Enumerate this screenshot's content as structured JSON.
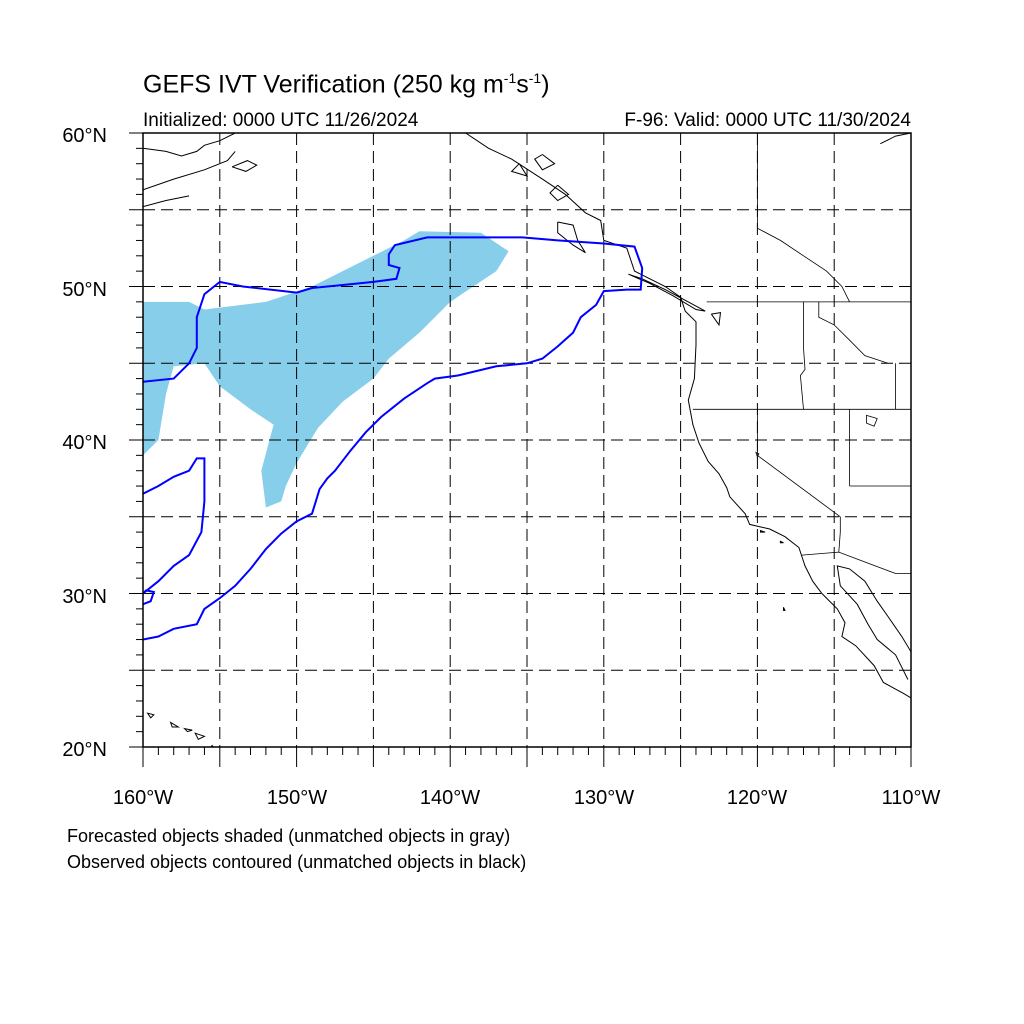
{
  "title": {
    "main": "GEFS IVT Verification (250 kg m",
    "exp1": "-1",
    "mid": "s",
    "exp2": "-1",
    "close": ")"
  },
  "initialized": "Initialized: 0000 UTC 11/26/2024",
  "valid": "F-96: Valid: 0000 UTC 11/30/2024",
  "lat_labels": [
    "60°N",
    "50°N",
    "40°N",
    "30°N",
    "20°N"
  ],
  "lon_labels": [
    "160°W",
    "150°W",
    "140°W",
    "130°W",
    "120°W",
    "110°W"
  ],
  "notes": {
    "line1": "Forecasted objects shaded (unmatched objects in gray)",
    "line2": "Observed objects contoured (unmatched objects in black)"
  },
  "map": {
    "extent": {
      "lon_min": -160,
      "lon_max": -110,
      "lat_min": 20,
      "lat_max": 60
    },
    "grid_interval_deg": 5,
    "colors": {
      "forecast_fill": "#87ceeb",
      "observed_contour": "#0000ff",
      "coast": "#000000",
      "grid": "#000000"
    },
    "forecast_object": [
      [
        -160,
        49
      ],
      [
        -157,
        49
      ],
      [
        -156,
        48.5
      ],
      [
        -152,
        49
      ],
      [
        -149,
        50
      ],
      [
        -147,
        51
      ],
      [
        -145,
        52
      ],
      [
        -143,
        53
      ],
      [
        -142,
        53.6
      ],
      [
        -138,
        53.5
      ],
      [
        -136.2,
        52.3
      ],
      [
        -137,
        51
      ],
      [
        -140,
        49
      ],
      [
        -142,
        47
      ],
      [
        -144,
        45.3
      ],
      [
        -145,
        44
      ],
      [
        -147,
        42.5
      ],
      [
        -148.6,
        40.8
      ],
      [
        -150,
        38.5
      ],
      [
        -150.7,
        37
      ],
      [
        -151,
        36
      ],
      [
        -152,
        35.6
      ],
      [
        -152.3,
        38
      ],
      [
        -151.5,
        41
      ],
      [
        -153,
        42
      ],
      [
        -155,
        43.5
      ],
      [
        -156,
        45
      ],
      [
        -158,
        44.8
      ],
      [
        -158.5,
        43
      ],
      [
        -159,
        40
      ],
      [
        -160,
        39
      ]
    ],
    "observed_objects": [
      [
        [
          -160,
          43.8
        ],
        [
          -158,
          44
        ],
        [
          -157,
          45
        ],
        [
          -156.5,
          46
        ],
        [
          -156.5,
          48
        ],
        [
          -156,
          49.5
        ],
        [
          -155,
          50.3
        ],
        [
          -153.5,
          50
        ],
        [
          -150,
          49.6
        ],
        [
          -149,
          49.9
        ],
        [
          -147,
          50.1
        ],
        [
          -145,
          50.3
        ],
        [
          -143.5,
          50.5
        ],
        [
          -143.3,
          51.2
        ],
        [
          -144,
          51.4
        ],
        [
          -144,
          52.1
        ],
        [
          -143.6,
          52.7
        ],
        [
          -141.5,
          53.2
        ],
        [
          -138,
          53.2
        ],
        [
          -135.3,
          53.2
        ],
        [
          -133,
          53
        ],
        [
          -130,
          52.8
        ],
        [
          -128,
          52.6
        ],
        [
          -127.5,
          51.2
        ],
        [
          -127.6,
          49.8
        ],
        [
          -128.5,
          49.8
        ],
        [
          -130,
          49.7
        ],
        [
          -130.5,
          48.8
        ],
        [
          -131.5,
          48
        ],
        [
          -132,
          47
        ],
        [
          -133,
          46.1
        ],
        [
          -134,
          45.3
        ],
        [
          -135,
          45
        ],
        [
          -137,
          44.8
        ],
        [
          -139.5,
          44.2
        ],
        [
          -141,
          44
        ],
        [
          -141.5,
          43.7
        ],
        [
          -143,
          42.7
        ],
        [
          -144.5,
          41.5
        ],
        [
          -145.5,
          40.5
        ],
        [
          -146.5,
          39.3
        ],
        [
          -147.5,
          38
        ],
        [
          -148,
          37.5
        ],
        [
          -148.5,
          36.8
        ],
        [
          -149,
          35.2
        ],
        [
          -150,
          34.7
        ],
        [
          -151,
          33.9
        ],
        [
          -152,
          32.9
        ],
        [
          -153,
          31.6
        ],
        [
          -154,
          30.5
        ],
        [
          -155,
          29.7
        ],
        [
          -156,
          29
        ],
        [
          -156.5,
          28
        ],
        [
          -158,
          27.7
        ],
        [
          -159,
          27.2
        ],
        [
          -160,
          27
        ]
      ],
      [
        [
          -160,
          36.5
        ],
        [
          -159,
          37
        ],
        [
          -158,
          37.6
        ],
        [
          -157,
          38
        ],
        [
          -156.5,
          38.8
        ],
        [
          -156,
          38.8
        ],
        [
          -156,
          36
        ],
        [
          -156.2,
          34
        ],
        [
          -157,
          32.5
        ],
        [
          -158,
          31.8
        ],
        [
          -159,
          30.8
        ],
        [
          -160,
          30
        ]
      ],
      [
        [
          -160,
          29.3
        ],
        [
          -159.5,
          29.5
        ],
        [
          -159.3,
          30.1
        ],
        [
          -159.8,
          30.2
        ],
        [
          -160,
          30
        ]
      ]
    ],
    "coastlines": [
      [
        [
          -160,
          59
        ],
        [
          -158.5,
          58.8
        ],
        [
          -157.5,
          58.5
        ],
        [
          -156.5,
          58.8
        ],
        [
          -156,
          59.2
        ],
        [
          -155,
          59.5
        ],
        [
          -154,
          60
        ]
      ],
      [
        [
          -160,
          56.3
        ],
        [
          -158,
          57
        ],
        [
          -156,
          57.6
        ],
        [
          -154.5,
          58.2
        ],
        [
          -154,
          58.8
        ]
      ],
      [
        [
          -160,
          55.2
        ],
        [
          -158.5,
          55.6
        ],
        [
          -157,
          55.9
        ]
      ],
      [
        [
          -154.2,
          57.8
        ],
        [
          -153.3,
          57.5
        ],
        [
          -152.6,
          57.9
        ],
        [
          -153.2,
          58.2
        ],
        [
          -154.2,
          57.8
        ]
      ],
      [
        [
          -139,
          60
        ],
        [
          -137.5,
          59
        ],
        [
          -136,
          58.3
        ],
        [
          -134,
          57
        ],
        [
          -132.5,
          56
        ],
        [
          -131.2,
          54.8
        ],
        [
          -130.2,
          54.3
        ],
        [
          -130,
          53
        ],
        [
          -128.5,
          52.5
        ],
        [
          -128,
          51
        ],
        [
          -127.2,
          50.6
        ],
        [
          -126,
          50
        ],
        [
          -125,
          49.3
        ],
        [
          -124.7,
          48.4
        ],
        [
          -124,
          47.7
        ],
        [
          -124,
          46.2
        ],
        [
          -124.1,
          44
        ],
        [
          -124.5,
          42.6
        ],
        [
          -124.2,
          41
        ],
        [
          -123.8,
          39.8
        ],
        [
          -123.2,
          38.6
        ],
        [
          -122.5,
          37.8
        ],
        [
          -122,
          36.9
        ],
        [
          -121.8,
          36.3
        ],
        [
          -120.8,
          35.2
        ],
        [
          -120.5,
          34.5
        ],
        [
          -119.2,
          34.2
        ],
        [
          -118.2,
          33.7
        ],
        [
          -117.3,
          33.0
        ],
        [
          -116.9,
          31.8
        ],
        [
          -116.4,
          30.8
        ],
        [
          -115.8,
          30.0
        ],
        [
          -114.8,
          29.0
        ],
        [
          -114.3,
          28.1
        ],
        [
          -114.5,
          27.2
        ],
        [
          -113.6,
          26.6
        ],
        [
          -112.4,
          25.3
        ],
        [
          -111.8,
          24.2
        ],
        [
          -110.5,
          23.5
        ],
        [
          -110,
          23.2
        ]
      ],
      [
        [
          -110,
          26.2
        ],
        [
          -110.6,
          27.2
        ],
        [
          -111.5,
          28.5
        ],
        [
          -112.2,
          29.5
        ],
        [
          -113,
          30.8
        ],
        [
          -114,
          31.6
        ],
        [
          -114.8,
          31.8
        ],
        [
          -114.6,
          30.5
        ],
        [
          -113.5,
          29.3
        ],
        [
          -112.8,
          28
        ],
        [
          -112.2,
          27
        ],
        [
          -111,
          26
        ],
        [
          -110.5,
          25
        ],
        [
          -110.2,
          24.4
        ]
      ],
      [
        [
          -133,
          54.2
        ],
        [
          -132,
          54
        ],
        [
          -131.7,
          53
        ],
        [
          -131.2,
          52.2
        ],
        [
          -132,
          52.7
        ],
        [
          -133,
          53.5
        ],
        [
          -133,
          54.2
        ]
      ],
      [
        [
          -128.4,
          50.8
        ],
        [
          -127,
          50.2
        ],
        [
          -125.5,
          49.4
        ],
        [
          -124,
          48.5
        ],
        [
          -123.4,
          48.4
        ],
        [
          -124.5,
          49
        ],
        [
          -126,
          49.8
        ],
        [
          -127.5,
          50.5
        ],
        [
          -128.4,
          50.8
        ]
      ],
      [
        [
          -123,
          48.2
        ],
        [
          -122.5,
          47.5
        ],
        [
          -122.4,
          48.3
        ],
        [
          -123,
          48.2
        ]
      ],
      [
        [
          -134,
          58.6
        ],
        [
          -133.2,
          58
        ],
        [
          -134,
          57.6
        ],
        [
          -134.5,
          58.3
        ],
        [
          -134,
          58.6
        ]
      ],
      [
        [
          -135.5,
          58
        ],
        [
          -135,
          57.2
        ],
        [
          -136,
          57.5
        ],
        [
          -135.5,
          58
        ]
      ],
      [
        [
          -133,
          56.6
        ],
        [
          -132.3,
          56
        ],
        [
          -133,
          55.6
        ],
        [
          -133.5,
          56.1
        ],
        [
          -133,
          56.6
        ]
      ],
      [
        [
          -110,
          60
        ],
        [
          -111,
          59.8
        ],
        [
          -112,
          59.3
        ]
      ]
    ],
    "islands": [
      [
        [
          -155.5,
          20.1
        ],
        [
          -155,
          19.5
        ],
        [
          -155.9,
          19.6
        ],
        [
          -155.5,
          20.1
        ]
      ],
      [
        [
          -156.6,
          20.9
        ],
        [
          -156,
          20.7
        ],
        [
          -156.4,
          20.5
        ],
        [
          -156.6,
          20.9
        ]
      ],
      [
        [
          -157.3,
          21.2
        ],
        [
          -156.8,
          21.1
        ],
        [
          -157.1,
          21.0
        ],
        [
          -157.3,
          21.2
        ]
      ],
      [
        [
          -158.2,
          21.6
        ],
        [
          -157.7,
          21.3
        ],
        [
          -158.1,
          21.3
        ],
        [
          -158.2,
          21.6
        ]
      ],
      [
        [
          -159.7,
          22.2
        ],
        [
          -159.3,
          22.1
        ],
        [
          -159.5,
          21.9
        ],
        [
          -159.7,
          22.2
        ]
      ],
      [
        [
          -118.5,
          33.4
        ],
        [
          -118.3,
          33.3
        ],
        [
          -118.5,
          33.3
        ],
        [
          -118.5,
          33.4
        ]
      ],
      [
        [
          -119.8,
          34.1
        ],
        [
          -119.5,
          34.0
        ],
        [
          -119.8,
          34.0
        ],
        [
          -119.8,
          34.1
        ]
      ],
      [
        [
          -118.3,
          29.1
        ],
        [
          -118.2,
          28.9
        ],
        [
          -118.3,
          28.9
        ],
        [
          -118.3,
          29.1
        ]
      ]
    ],
    "borders": [
      [
        [
          -141,
          60
        ],
        [
          -141,
          60
        ]
      ],
      [
        [
          -123.3,
          49
        ],
        [
          -110,
          49
        ]
      ],
      [
        [
          -124.2,
          42
        ],
        [
          -110,
          42
        ]
      ],
      [
        [
          -120,
          42
        ],
        [
          -120,
          39
        ],
        [
          -114.6,
          35
        ]
      ],
      [
        [
          -117,
          49
        ],
        [
          -117,
          46
        ],
        [
          -116.9,
          44.6
        ],
        [
          -117.2,
          44.2
        ],
        [
          -117,
          42
        ]
      ],
      [
        [
          -114,
          42
        ],
        [
          -114,
          37
        ]
      ],
      [
        [
          -114,
          37
        ],
        [
          -109.9,
          37
        ]
      ],
      [
        [
          -117.1,
          32.5
        ],
        [
          -114.7,
          32.7
        ],
        [
          -111,
          31.3
        ],
        [
          -110,
          31.3
        ]
      ],
      [
        [
          -114.6,
          35
        ],
        [
          -114.6,
          34
        ],
        [
          -114.7,
          32.7
        ]
      ],
      [
        [
          -111.0,
          45
        ],
        [
          -111,
          44.5
        ],
        [
          -111.0,
          42
        ]
      ],
      [
        [
          -116,
          49
        ],
        [
          -116,
          48
        ],
        [
          -115,
          47.5
        ],
        [
          -114,
          46.5
        ],
        [
          -113,
          45.5
        ],
        [
          -111.5,
          45
        ]
      ],
      [
        [
          -120,
          60
        ],
        [
          -120,
          53.8
        ],
        [
          -118.5,
          53
        ],
        [
          -117,
          52
        ],
        [
          -115.5,
          51
        ],
        [
          -114.5,
          50
        ],
        [
          -114,
          49
        ]
      ]
    ],
    "lakes": [
      [
        [
          -112.9,
          41.6
        ],
        [
          -112.2,
          41.4
        ],
        [
          -112.4,
          40.9
        ],
        [
          -112.9,
          41.1
        ],
        [
          -112.9,
          41.6
        ]
      ],
      [
        [
          -120.1,
          39.2
        ],
        [
          -119.9,
          39.1
        ],
        [
          -120.0,
          38.9
        ],
        [
          -120.1,
          39.2
        ]
      ]
    ]
  }
}
